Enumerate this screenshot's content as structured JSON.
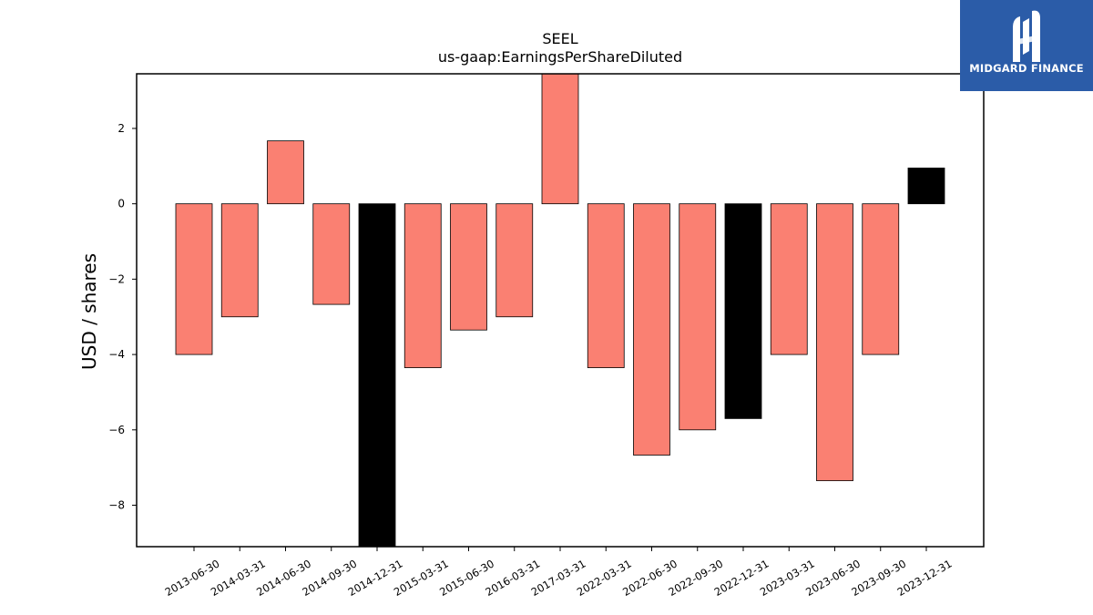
{
  "logo": {
    "name": "MIDGARD FINANCE",
    "icon": "midgard-logo-icon"
  },
  "colors": {
    "positive_or_default": "#fa8072",
    "highlight": "#000000",
    "axis": "#000000"
  },
  "chart_data": {
    "type": "bar",
    "title": "SEEL",
    "subtitle": "us-gaap:EarningsPerShareDiluted",
    "xlabel": "",
    "ylabel": "USD / shares",
    "ylim": [
      -9.1,
      3.45
    ],
    "yticks": [
      2,
      0,
      -2,
      -4,
      -6,
      -8
    ],
    "ytick_labels": [
      "2",
      "0",
      "−2",
      "−4",
      "−6",
      "−8"
    ],
    "grid": false,
    "categories": [
      "2013-06-30",
      "2014-03-31",
      "2014-06-30",
      "2014-09-30",
      "2014-12-31",
      "2015-03-31",
      "2015-06-30",
      "2016-03-31",
      "2017-03-31",
      "2022-03-31",
      "2022-06-30",
      "2022-09-30",
      "2022-12-31",
      "2023-03-31",
      "2023-06-30",
      "2023-09-30",
      "2023-12-31"
    ],
    "values": [
      -4.0,
      -3.0,
      1.67,
      -2.67,
      -9.1,
      -4.35,
      -3.35,
      -3.0,
      3.45,
      -4.35,
      -6.67,
      -6.0,
      -5.7,
      -4.0,
      -7.35,
      -4.0,
      0.95
    ],
    "bar_colors": [
      "#fa8072",
      "#fa8072",
      "#fa8072",
      "#fa8072",
      "#000000",
      "#fa8072",
      "#fa8072",
      "#fa8072",
      "#fa8072",
      "#fa8072",
      "#fa8072",
      "#fa8072",
      "#000000",
      "#fa8072",
      "#fa8072",
      "#fa8072",
      "#000000"
    ]
  }
}
